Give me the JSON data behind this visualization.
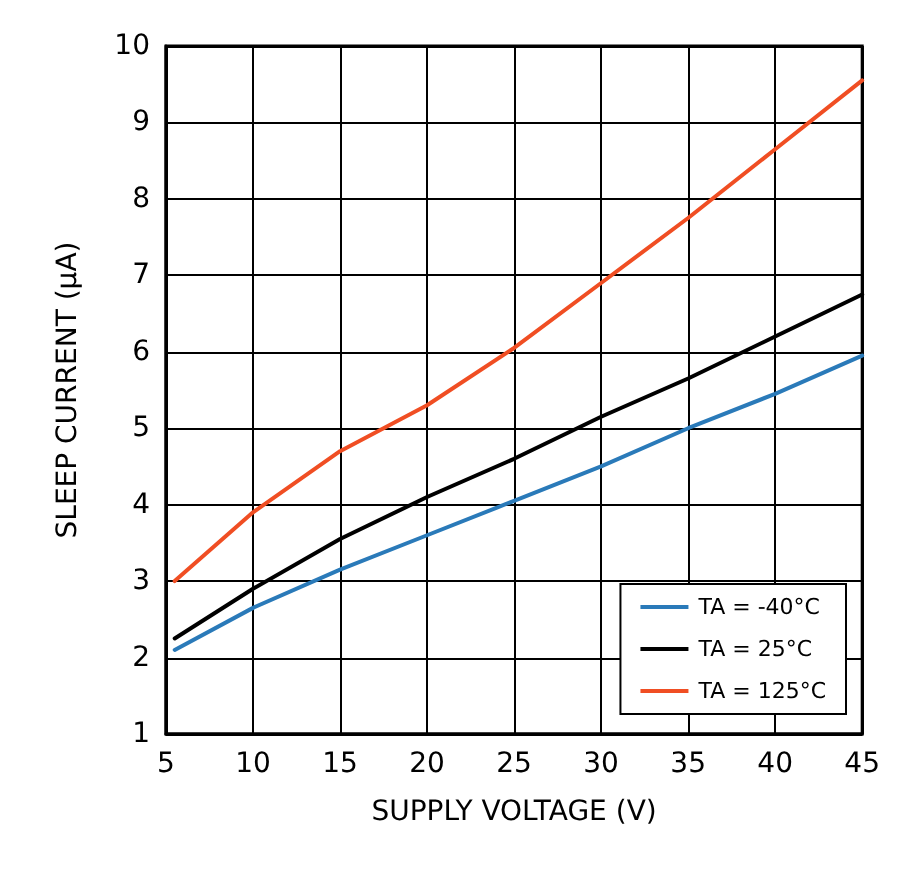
{
  "chart_data": {
    "type": "line",
    "xlabel": "SUPPLY VOLTAGE (V)",
    "ylabel": "SLEEP CURRENT (µA)",
    "x": [
      5.5,
      10,
      15,
      20,
      25,
      30,
      35,
      40,
      45
    ],
    "series": [
      {
        "name": "TA = -40°C",
        "color": "#2a7ab9",
        "values": [
          2.1,
          2.65,
          3.15,
          3.6,
          4.05,
          4.5,
          5.0,
          5.45,
          5.95
        ]
      },
      {
        "name": "TA = 25°C",
        "color": "#000000",
        "values": [
          2.25,
          2.9,
          3.55,
          4.1,
          4.6,
          5.15,
          5.65,
          6.2,
          6.75
        ]
      },
      {
        "name": "TA = 125°C",
        "color": "#f04e23",
        "values": [
          3.0,
          3.9,
          4.7,
          5.3,
          6.05,
          6.9,
          7.75,
          8.65,
          9.55
        ]
      }
    ],
    "xlim": [
      5,
      45
    ],
    "xticks": [
      5,
      10,
      15,
      20,
      25,
      30,
      35,
      40,
      45
    ],
    "ylim": [
      1,
      10
    ],
    "yticks": [
      1,
      2,
      3,
      4,
      5,
      6,
      7,
      8,
      9,
      10
    ],
    "grid": true,
    "legend": "bottom right",
    "marker": "none",
    "line_style": "solid"
  }
}
